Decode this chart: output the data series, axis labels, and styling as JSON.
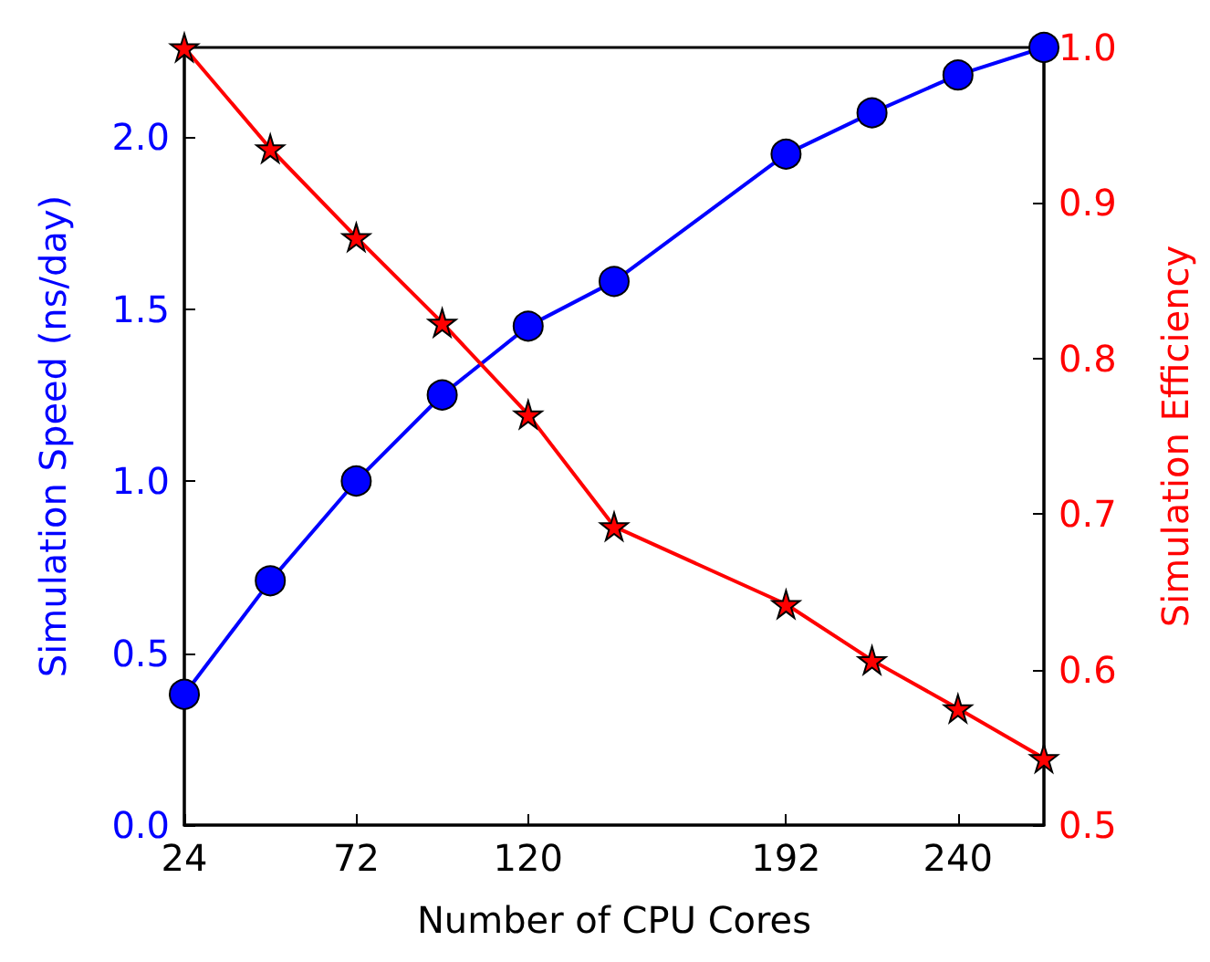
{
  "chart_data": {
    "type": "line",
    "xlabel": "Number of CPU Cores",
    "ylabel": "Simulation Speed (ns/day)",
    "y2label": "Simulation Efficiency",
    "x": [
      24,
      48,
      72,
      96,
      120,
      144,
      192,
      216,
      240,
      264
    ],
    "xlim": [
      24,
      264
    ],
    "xticks": [
      24,
      72,
      120,
      192,
      240
    ],
    "ylim": [
      0,
      2.26
    ],
    "yticks": [
      {
        "value": 0,
        "label": "0.0"
      },
      {
        "value": 0.5,
        "label": "0.5"
      },
      {
        "value": 1,
        "label": "1.0"
      },
      {
        "value": 1.5,
        "label": "1.5"
      },
      {
        "value": 2,
        "label": "2.0"
      }
    ],
    "y2lim": [
      0.5,
      1.0
    ],
    "y2ticks": [
      {
        "value": 0.5,
        "label": "0.5"
      },
      {
        "value": 0.6,
        "label": "0.6"
      },
      {
        "value": 0.7,
        "label": "0.7"
      },
      {
        "value": 0.8,
        "label": "0.8"
      },
      {
        "value": 0.9,
        "label": "0.9"
      },
      {
        "value": 1.0,
        "label": "1.0"
      }
    ],
    "grid": false,
    "line_style": "solid",
    "series": [
      {
        "color": "#0000ff",
        "marker": "circle",
        "values": [
          0.38,
          0.71,
          1.0,
          1.25,
          1.45,
          1.58,
          1.95,
          2.07,
          2.18,
          2.26
        ]
      },
      {
        "color": "#ff0000",
        "marker": "star",
        "axis": "y2",
        "values": [
          1.0,
          0.935,
          0.878,
          0.823,
          0.764,
          0.692,
          0.642,
          0.606,
          0.575,
          0.543
        ]
      }
    ]
  }
}
